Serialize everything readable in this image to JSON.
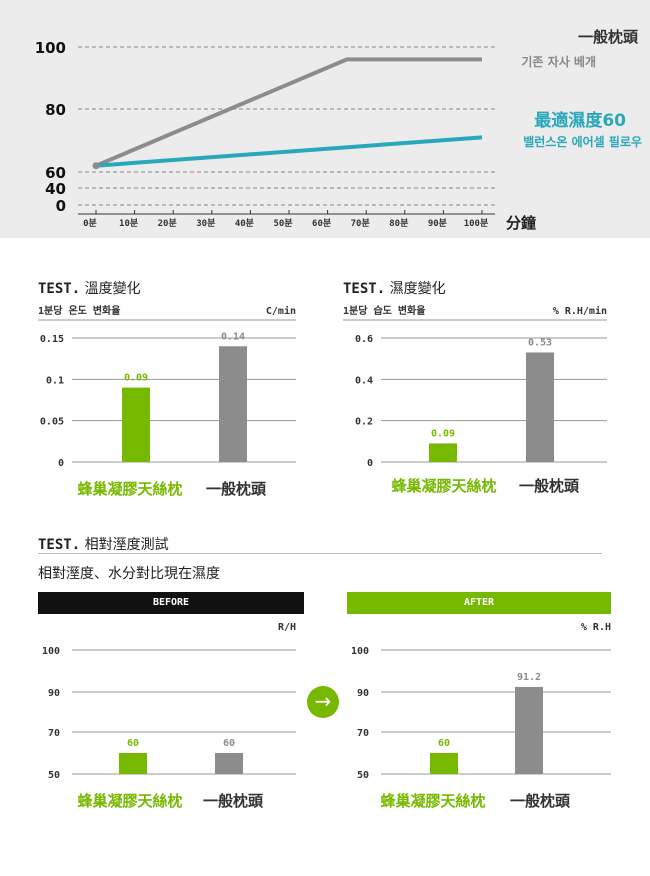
{
  "chart_data": [
    {
      "type": "line",
      "x": [
        "0분",
        "10분",
        "20분",
        "30분",
        "40분",
        "50분",
        "60분",
        "70분",
        "80분",
        "90분",
        "100분"
      ],
      "xunit": "分鐘",
      "y_ticks": [
        "100",
        "80",
        "60",
        "40",
        "0"
      ],
      "series": [
        {
          "name": "一般枕頭",
          "sub": "기존 자사 베개",
          "color": "#8c8c8c",
          "points": [
            [
              0,
              62
            ],
            [
              65,
              96
            ],
            [
              100,
              96
            ]
          ]
        },
        {
          "name": "最適濕度60",
          "sub": "밸런스온 에어셀 필로우",
          "color": "#2aa8bb",
          "points": [
            [
              0,
              62
            ],
            [
              100,
              71
            ]
          ]
        }
      ]
    },
    {
      "type": "bar",
      "title_prefix": "TEST.",
      "title": "溫度變化",
      "ylabel": "1분당 온도 변화율",
      "unit": "C/min",
      "y_ticks": [
        "0.15",
        "0.1",
        "0.05",
        "0"
      ],
      "ylim": [
        0,
        0.15
      ],
      "categories": [
        "蜂巢凝膠天絲枕",
        "一般枕頭"
      ],
      "values": [
        0.09,
        0.14
      ],
      "value_labels": [
        "0.09",
        "0.14"
      ],
      "colors": [
        "#76b900",
        "#8c8c8c"
      ]
    },
    {
      "type": "bar",
      "title_prefix": "TEST.",
      "title": "濕度變化",
      "ylabel": "1분당 습도 변화율",
      "unit": "% R.H/min",
      "y_ticks": [
        "0.6",
        "0.4",
        "0.2",
        "0"
      ],
      "ylim": [
        0,
        0.6
      ],
      "categories": [
        "蜂巢凝膠天絲枕",
        "一般枕頭"
      ],
      "values": [
        0.09,
        0.53
      ],
      "value_labels": [
        "0.09",
        "0.53"
      ],
      "colors": [
        "#76b900",
        "#8c8c8c"
      ]
    },
    {
      "type": "bar",
      "header": "BEFORE",
      "unit": "R/H",
      "y_ticks": [
        "100",
        "90",
        "70",
        "50"
      ],
      "tick_values": [
        100,
        90,
        70,
        50
      ],
      "categories": [
        "蜂巢凝膠天絲枕",
        "一般枕頭"
      ],
      "values": [
        60,
        60
      ],
      "value_labels": [
        "60",
        "60"
      ],
      "colors": [
        "#76b900",
        "#8c8c8c"
      ]
    },
    {
      "type": "bar",
      "header": "AFTER",
      "unit": "% R.H",
      "y_ticks": [
        "100",
        "90",
        "70",
        "50"
      ],
      "tick_values": [
        100,
        90,
        70,
        50
      ],
      "categories": [
        "蜂巢凝膠天絲枕",
        "一般枕頭"
      ],
      "values": [
        60,
        91.2
      ],
      "value_labels": [
        "60",
        "91.2"
      ],
      "colors": [
        "#76b900",
        "#8c8c8c"
      ]
    }
  ],
  "test3": {
    "title_prefix": "TEST.",
    "title": "相對溼度測試",
    "subtitle": "相對溼度、水分對比現在濕度"
  },
  "arrow": "→",
  "colors": {
    "green": "#76b900",
    "gray": "#8c8c8c",
    "teal": "#2aa8bb",
    "black": "#111111"
  }
}
